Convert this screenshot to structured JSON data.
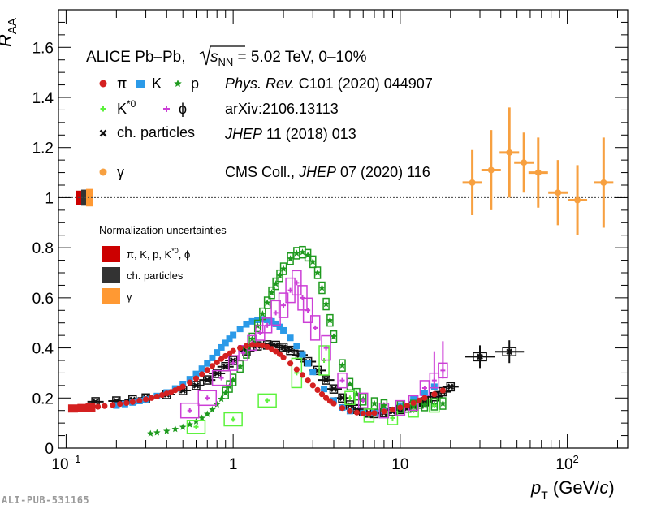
{
  "watermark": "ALI-PUB-531165",
  "chart_data": {
    "type": "scatter",
    "x_scale": "log",
    "xlim": [
      0.09,
      230
    ],
    "ylim": [
      0,
      1.75
    ],
    "xlabel": {
      "main": "p",
      "sub": "T",
      "unit_pre": " (GeV/",
      "unit_var": "c",
      "unit_post": ")"
    },
    "ylabel": {
      "main": "R",
      "sub": "AA"
    },
    "x_ticks": [
      {
        "value": 0.1,
        "base": "10",
        "exp": "−1"
      },
      {
        "value": 1,
        "label": "1"
      },
      {
        "value": 10,
        "label": "10"
      },
      {
        "value": 100,
        "base": "10",
        "exp": "2"
      }
    ],
    "y_ticks": [
      {
        "value": 0,
        "label": "0"
      },
      {
        "value": 0.2,
        "label": "0.2"
      },
      {
        "value": 0.4,
        "label": "0.4"
      },
      {
        "value": 0.6,
        "label": "0.6"
      },
      {
        "value": 0.8,
        "label": "0.8"
      },
      {
        "value": 1.0,
        "label": "1"
      },
      {
        "value": 1.2,
        "label": "1.2"
      },
      {
        "value": 1.4,
        "label": "1.4"
      },
      {
        "value": 1.6,
        "label": "1.6"
      }
    ],
    "reference_line": 1.0,
    "title_parts": {
      "pre": "ALICE Pb–Pb, ",
      "sqrt_var": "s",
      "sqrt_sub": "NN",
      "post": " = 5.02 TeV, 0–10%"
    },
    "legend": {
      "pion": "π",
      "kaon": "K",
      "proton": "p",
      "kstar_base": "K",
      "kstar_sup": "*0",
      "phi": "ϕ",
      "charged": "ch. particles",
      "gamma": "γ",
      "ref1_journal": "Phys. Rev.",
      "ref1_rest": " C101 (2020) 044907",
      "ref2": "arXiv:2106.13113",
      "ref3_journal": "JHEP",
      "ref3_rest": " 11 (2018) 013",
      "ref4_pre": "CMS Coll., ",
      "ref4_journal": "JHEP",
      "ref4_rest": " 07 (2020) 116",
      "norm_title": "Normalization uncertainties",
      "norm_1_pre": "π, K, p, K",
      "norm_1_sup": "*0",
      "norm_1_post": ", ϕ",
      "norm_2": "ch. particles",
      "norm_3": "γ"
    },
    "colors": {
      "pion": "#d42020",
      "kaon": "#2b9ae8",
      "proton": "#1e9a1e",
      "kstar": "#5cf23c",
      "phi": "#cc3fd6",
      "charged": "#111111",
      "gamma": "#f7a040",
      "norm_pid": "#cc0000",
      "norm_charged": "#333333",
      "norm_gamma": "#ff9933"
    },
    "norm_bands": [
      {
        "name": "pid",
        "y_low": 0.972,
        "y_high": 1.028
      },
      {
        "name": "charged",
        "y_low": 0.968,
        "y_high": 1.032
      },
      {
        "name": "gamma",
        "y_low": 0.965,
        "y_high": 1.035
      }
    ],
    "series": [
      {
        "name": "π",
        "x": [
          0.11,
          0.125,
          0.14,
          0.155,
          0.17,
          0.19,
          0.21,
          0.23,
          0.25,
          0.275,
          0.3,
          0.325,
          0.35,
          0.375,
          0.4,
          0.425,
          0.45,
          0.475,
          0.5,
          0.55,
          0.6,
          0.65,
          0.7,
          0.75,
          0.8,
          0.85,
          0.9,
          0.95,
          1.0,
          1.1,
          1.2,
          1.3,
          1.4,
          1.5,
          1.6,
          1.7,
          1.8,
          1.9,
          2.0,
          2.2,
          2.4,
          2.6,
          2.8,
          3.0,
          3.2,
          3.4,
          3.6,
          3.8,
          4.0,
          4.5,
          5.0,
          5.5,
          6.0,
          6.5,
          7.0,
          8.0,
          9.0,
          10.0,
          11.0,
          12.0,
          13.0,
          14.0,
          16.0,
          18.0
        ],
        "y": [
          0.158,
          0.16,
          0.162,
          0.165,
          0.168,
          0.172,
          0.176,
          0.18,
          0.184,
          0.19,
          0.195,
          0.2,
          0.206,
          0.212,
          0.218,
          0.224,
          0.231,
          0.238,
          0.246,
          0.262,
          0.278,
          0.295,
          0.312,
          0.328,
          0.342,
          0.356,
          0.368,
          0.378,
          0.388,
          0.4,
          0.408,
          0.412,
          0.412,
          0.41,
          0.404,
          0.396,
          0.386,
          0.375,
          0.362,
          0.338,
          0.314,
          0.292,
          0.27,
          0.25,
          0.232,
          0.215,
          0.2,
          0.188,
          0.178,
          0.16,
          0.148,
          0.142,
          0.138,
          0.138,
          0.14,
          0.146,
          0.154,
          0.162,
          0.17,
          0.18,
          0.19,
          0.2,
          0.215,
          0.23
        ]
      },
      {
        "name": "K",
        "x": [
          0.2,
          0.225,
          0.25,
          0.275,
          0.3,
          0.35,
          0.4,
          0.45,
          0.5,
          0.55,
          0.6,
          0.65,
          0.7,
          0.75,
          0.8,
          0.85,
          0.9,
          0.95,
          1.0,
          1.1,
          1.2,
          1.3,
          1.4,
          1.5,
          1.6,
          1.7,
          1.8,
          1.9,
          2.0,
          2.2,
          2.4,
          2.6,
          2.8,
          3.0,
          3.5,
          4.0,
          4.5,
          5.0,
          6.0,
          7.0,
          8.0,
          10.0,
          12.0,
          14.0,
          16.0
        ],
        "y": [
          0.17,
          0.176,
          0.182,
          0.188,
          0.194,
          0.208,
          0.222,
          0.238,
          0.256,
          0.275,
          0.296,
          0.317,
          0.338,
          0.36,
          0.382,
          0.402,
          0.42,
          0.437,
          0.452,
          0.476,
          0.494,
          0.506,
          0.512,
          0.514,
          0.512,
          0.506,
          0.496,
          0.484,
          0.47,
          0.44,
          0.408,
          0.374,
          0.338,
          0.304,
          0.236,
          0.19,
          0.162,
          0.148,
          0.14,
          0.142,
          0.15,
          0.17,
          0.195,
          0.22,
          0.245
        ]
      },
      {
        "name": "p",
        "x": [
          0.32,
          0.35,
          0.4,
          0.45,
          0.5,
          0.55,
          0.6,
          0.65,
          0.7,
          0.75,
          0.8,
          0.85,
          0.9,
          0.95,
          1.0,
          1.1,
          1.2,
          1.3,
          1.4,
          1.5,
          1.6,
          1.7,
          1.8,
          1.9,
          2.0,
          2.2,
          2.4,
          2.6,
          2.8,
          3.0,
          3.2,
          3.4,
          3.6,
          3.8,
          4.0,
          4.5,
          5.0,
          5.5,
          6.0,
          7.0,
          8.0,
          10.0,
          12.0,
          14.0,
          16.0,
          18.0
        ],
        "y": [
          0.058,
          0.062,
          0.068,
          0.076,
          0.084,
          0.094,
          0.106,
          0.12,
          0.136,
          0.154,
          0.174,
          0.196,
          0.22,
          0.246,
          0.272,
          0.326,
          0.382,
          0.436,
          0.488,
          0.536,
          0.58,
          0.62,
          0.656,
          0.688,
          0.716,
          0.756,
          0.778,
          0.782,
          0.77,
          0.744,
          0.7,
          0.64,
          0.575,
          0.51,
          0.445,
          0.33,
          0.255,
          0.215,
          0.195,
          0.178,
          0.17,
          0.165,
          0.168,
          0.172,
          0.175,
          0.178
        ]
      },
      {
        "name": "K*0",
        "x": [
          0.6,
          1.0,
          1.6,
          2.4,
          3.5,
          5.0,
          6.5,
          9.0,
          12.0,
          16.0
        ],
        "y": [
          0.085,
          0.115,
          0.19,
          0.3,
          0.35,
          0.2,
          0.13,
          0.12,
          0.15,
          0.17
        ]
      },
      {
        "name": "ϕ",
        "x": [
          0.55,
          0.7,
          0.85,
          1.0,
          1.15,
          1.3,
          1.45,
          1.6,
          1.8,
          2.0,
          2.2,
          2.4,
          2.6,
          2.8,
          3.1,
          3.6,
          4.5,
          6.0,
          8.0,
          10.0,
          12.0,
          14.0,
          16.0,
          18.0
        ],
        "y": [
          0.15,
          0.2,
          0.28,
          0.34,
          0.38,
          0.42,
          0.46,
          0.49,
          0.54,
          0.57,
          0.63,
          0.66,
          0.6,
          0.55,
          0.48,
          0.4,
          0.27,
          0.19,
          0.15,
          0.16,
          0.18,
          0.24,
          0.27,
          0.31
        ]
      },
      {
        "name": "ch. particles",
        "x": [
          0.15,
          0.2,
          0.25,
          0.3,
          0.4,
          0.5,
          0.6,
          0.7,
          0.8,
          0.9,
          1.0,
          1.2,
          1.4,
          1.6,
          1.8,
          2.0,
          2.2,
          2.5,
          2.8,
          3.2,
          3.6,
          4.0,
          4.5,
          5.0,
          5.5,
          6.0,
          6.5,
          7.0,
          8.0,
          9.0,
          10.0,
          11.0,
          12.0,
          13.0,
          14.0,
          16.0,
          18.0,
          20.0,
          30.0,
          45.0
        ],
        "y": [
          0.185,
          0.188,
          0.193,
          0.2,
          0.214,
          0.23,
          0.25,
          0.272,
          0.298,
          0.325,
          0.35,
          0.388,
          0.408,
          0.412,
          0.41,
          0.402,
          0.39,
          0.372,
          0.345,
          0.31,
          0.272,
          0.236,
          0.2,
          0.172,
          0.155,
          0.145,
          0.14,
          0.138,
          0.14,
          0.146,
          0.154,
          0.16,
          0.168,
          0.176,
          0.185,
          0.205,
          0.225,
          0.245,
          0.365,
          0.385
        ]
      },
      {
        "name": "γ",
        "x": [
          27.0,
          35.0,
          45.0,
          55.0,
          67.0,
          88.0,
          115.0,
          165.0
        ],
        "y": [
          1.06,
          1.11,
          1.18,
          1.14,
          1.1,
          1.02,
          0.99,
          1.06
        ],
        "yerr": [
          0.13,
          0.16,
          0.18,
          0.12,
          0.14,
          0.13,
          0.14,
          0.18
        ]
      }
    ]
  }
}
